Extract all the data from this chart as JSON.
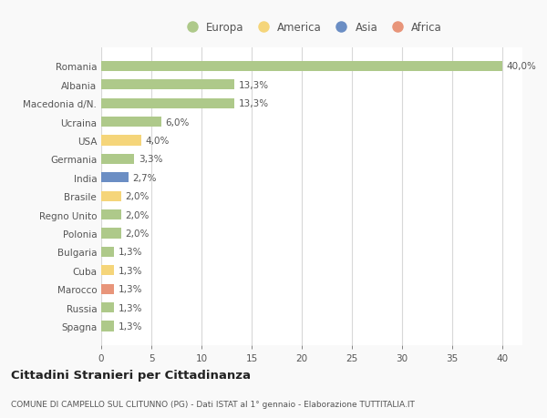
{
  "countries": [
    "Romania",
    "Albania",
    "Macedonia d/N.",
    "Ucraina",
    "USA",
    "Germania",
    "India",
    "Brasile",
    "Regno Unito",
    "Polonia",
    "Bulgaria",
    "Cuba",
    "Marocco",
    "Russia",
    "Spagna"
  ],
  "values": [
    40.0,
    13.3,
    13.3,
    6.0,
    4.0,
    3.3,
    2.7,
    2.0,
    2.0,
    2.0,
    1.3,
    1.3,
    1.3,
    1.3,
    1.3
  ],
  "labels": [
    "40,0%",
    "13,3%",
    "13,3%",
    "6,0%",
    "4,0%",
    "3,3%",
    "2,7%",
    "2,0%",
    "2,0%",
    "2,0%",
    "1,3%",
    "1,3%",
    "1,3%",
    "1,3%",
    "1,3%"
  ],
  "colors": [
    "#aec98a",
    "#aec98a",
    "#aec98a",
    "#aec98a",
    "#f5d57a",
    "#aec98a",
    "#6b8ec4",
    "#f5d57a",
    "#aec98a",
    "#aec98a",
    "#aec98a",
    "#f5d57a",
    "#e8957a",
    "#aec98a",
    "#aec98a"
  ],
  "legend": {
    "Europa": "#aec98a",
    "America": "#f5d57a",
    "Asia": "#6b8ec4",
    "Africa": "#e8957a"
  },
  "xlim": [
    0,
    42
  ],
  "xticks": [
    0,
    5,
    10,
    15,
    20,
    25,
    30,
    35,
    40
  ],
  "title": "Cittadini Stranieri per Cittadinanza",
  "subtitle": "COMUNE DI CAMPELLO SUL CLITUNNO (PG) - Dati ISTAT al 1° gennaio - Elaborazione TUTTITALIA.IT",
  "background_color": "#f9f9f9",
  "bar_background": "#ffffff",
  "grid_color": "#d8d8d8",
  "text_color": "#555555"
}
